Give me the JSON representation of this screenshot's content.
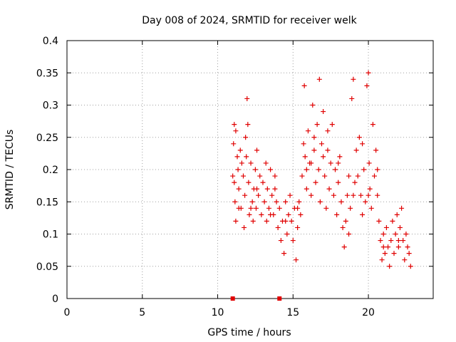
{
  "chart_data": {
    "type": "scatter",
    "title": "Day 008 of 2024, SRMTID for receiver welk",
    "xlabel": "GPS time / hours",
    "ylabel": "SRMTID / TECUs",
    "xlim": [
      0,
      24.3
    ],
    "ylim": [
      0,
      0.4
    ],
    "xticks": [
      0,
      5,
      10,
      15,
      20
    ],
    "yticks": [
      0,
      0.05,
      0.1,
      0.15,
      0.2,
      0.25,
      0.3,
      0.35,
      0.4
    ],
    "xtick_labels": [
      "0",
      "5",
      "10",
      "15",
      "20"
    ],
    "ytick_labels": [
      "0",
      "0.05",
      "0.1",
      "0.15",
      "0.2",
      "0.25",
      "0.3",
      "0.35",
      "0.4"
    ],
    "grid": true,
    "marker": "+",
    "color": "#e00000",
    "series": [
      {
        "name": "SRMTID",
        "points": [
          [
            11.0,
            0.19
          ],
          [
            11.05,
            0.24
          ],
          [
            11.1,
            0.27
          ],
          [
            11.1,
            0.18
          ],
          [
            11.15,
            0.15
          ],
          [
            11.2,
            0.12
          ],
          [
            11.2,
            0.26
          ],
          [
            11.3,
            0.22
          ],
          [
            11.35,
            0.2
          ],
          [
            11.4,
            0.17
          ],
          [
            11.5,
            0.23
          ],
          [
            11.55,
            0.14
          ],
          [
            11.6,
            0.21
          ],
          [
            11.7,
            0.19
          ],
          [
            11.75,
            0.11
          ],
          [
            11.8,
            0.16
          ],
          [
            11.85,
            0.25
          ],
          [
            11.9,
            0.22
          ],
          [
            11.95,
            0.31
          ],
          [
            12.0,
            0.27
          ],
          [
            12.05,
            0.18
          ],
          [
            12.1,
            0.13
          ],
          [
            12.2,
            0.21
          ],
          [
            12.3,
            0.15
          ],
          [
            12.35,
            0.12
          ],
          [
            12.4,
            0.17
          ],
          [
            12.5,
            0.2
          ],
          [
            12.55,
            0.14
          ],
          [
            12.6,
            0.23
          ],
          [
            12.7,
            0.16
          ],
          [
            12.8,
            0.19
          ],
          [
            12.9,
            0.13
          ],
          [
            13.0,
            0.18
          ],
          [
            13.1,
            0.15
          ],
          [
            13.2,
            0.21
          ],
          [
            13.25,
            0.12
          ],
          [
            13.3,
            0.17
          ],
          [
            13.4,
            0.14
          ],
          [
            13.5,
            0.2
          ],
          [
            13.6,
            0.16
          ],
          [
            13.7,
            0.13
          ],
          [
            13.8,
            0.19
          ],
          [
            13.9,
            0.15
          ],
          [
            14.0,
            0.11
          ],
          [
            14.1,
            0.14
          ],
          [
            14.2,
            0.09
          ],
          [
            14.3,
            0.12
          ],
          [
            14.4,
            0.07
          ],
          [
            14.5,
            0.15
          ],
          [
            14.6,
            0.1
          ],
          [
            14.7,
            0.13
          ],
          [
            14.8,
            0.16
          ],
          [
            14.9,
            0.12
          ],
          [
            15.0,
            0.09
          ],
          [
            15.1,
            0.14
          ],
          [
            15.2,
            0.06
          ],
          [
            15.3,
            0.11
          ],
          [
            15.4,
            0.15
          ],
          [
            15.5,
            0.13
          ],
          [
            15.6,
            0.19
          ],
          [
            15.7,
            0.24
          ],
          [
            15.75,
            0.33
          ],
          [
            15.8,
            0.22
          ],
          [
            15.9,
            0.17
          ],
          [
            16.0,
            0.26
          ],
          [
            16.1,
            0.21
          ],
          [
            16.2,
            0.16
          ],
          [
            16.3,
            0.3
          ],
          [
            16.4,
            0.23
          ],
          [
            16.5,
            0.18
          ],
          [
            16.6,
            0.27
          ],
          [
            16.7,
            0.2
          ],
          [
            16.75,
            0.34
          ],
          [
            16.8,
            0.15
          ],
          [
            16.9,
            0.24
          ],
          [
            17.0,
            0.29
          ],
          [
            17.1,
            0.19
          ],
          [
            17.2,
            0.14
          ],
          [
            17.3,
            0.23
          ],
          [
            17.4,
            0.17
          ],
          [
            17.5,
            0.21
          ],
          [
            17.6,
            0.27
          ],
          [
            17.7,
            0.16
          ],
          [
            17.8,
            0.2
          ],
          [
            17.9,
            0.13
          ],
          [
            18.0,
            0.18
          ],
          [
            18.1,
            0.22
          ],
          [
            18.2,
            0.15
          ],
          [
            18.3,
            0.11
          ],
          [
            18.4,
            0.08
          ],
          [
            18.5,
            0.12
          ],
          [
            18.6,
            0.16
          ],
          [
            18.7,
            0.1
          ],
          [
            18.8,
            0.14
          ],
          [
            18.9,
            0.31
          ],
          [
            19.0,
            0.34
          ],
          [
            19.1,
            0.18
          ],
          [
            19.2,
            0.23
          ],
          [
            19.3,
            0.19
          ],
          [
            19.4,
            0.25
          ],
          [
            19.5,
            0.16
          ],
          [
            19.6,
            0.13
          ],
          [
            19.7,
            0.2
          ],
          [
            19.8,
            0.15
          ],
          [
            19.9,
            0.33
          ],
          [
            20.0,
            0.35
          ],
          [
            20.05,
            0.21
          ],
          [
            20.1,
            0.17
          ],
          [
            20.2,
            0.14
          ],
          [
            20.3,
            0.27
          ],
          [
            20.4,
            0.19
          ],
          [
            20.5,
            0.23
          ],
          [
            20.6,
            0.16
          ],
          [
            20.7,
            0.12
          ],
          [
            20.8,
            0.09
          ],
          [
            20.9,
            0.06
          ],
          [
            21.0,
            0.1
          ],
          [
            21.1,
            0.07
          ],
          [
            21.2,
            0.11
          ],
          [
            21.3,
            0.08
          ],
          [
            21.4,
            0.05
          ],
          [
            21.5,
            0.09
          ],
          [
            21.6,
            0.12
          ],
          [
            21.7,
            0.07
          ],
          [
            21.8,
            0.1
          ],
          [
            21.9,
            0.13
          ],
          [
            22.0,
            0.08
          ],
          [
            22.1,
            0.11
          ],
          [
            22.2,
            0.14
          ],
          [
            22.3,
            0.09
          ],
          [
            22.4,
            0.06
          ],
          [
            22.5,
            0.1
          ],
          [
            22.6,
            0.08
          ],
          [
            22.7,
            0.07
          ],
          [
            22.8,
            0.05
          ],
          [
            11.4,
            0.14
          ],
          [
            12.6,
            0.17
          ],
          [
            13.5,
            0.13
          ],
          [
            14.5,
            0.12
          ],
          [
            15.3,
            0.14
          ],
          [
            16.2,
            0.21
          ],
          [
            17.0,
            0.22
          ],
          [
            18.0,
            0.21
          ],
          [
            19.0,
            0.16
          ],
          [
            20.0,
            0.16
          ],
          [
            21.0,
            0.08
          ],
          [
            22.0,
            0.09
          ],
          [
            16.4,
            0.25
          ],
          [
            17.3,
            0.26
          ],
          [
            18.7,
            0.19
          ],
          [
            19.6,
            0.24
          ],
          [
            20.6,
            0.2
          ],
          [
            15.9,
            0.2
          ],
          [
            13.8,
            0.17
          ],
          [
            12.2,
            0.14
          ]
        ]
      }
    ],
    "data_gap_markers_x": [
      11.0,
      14.1
    ]
  }
}
